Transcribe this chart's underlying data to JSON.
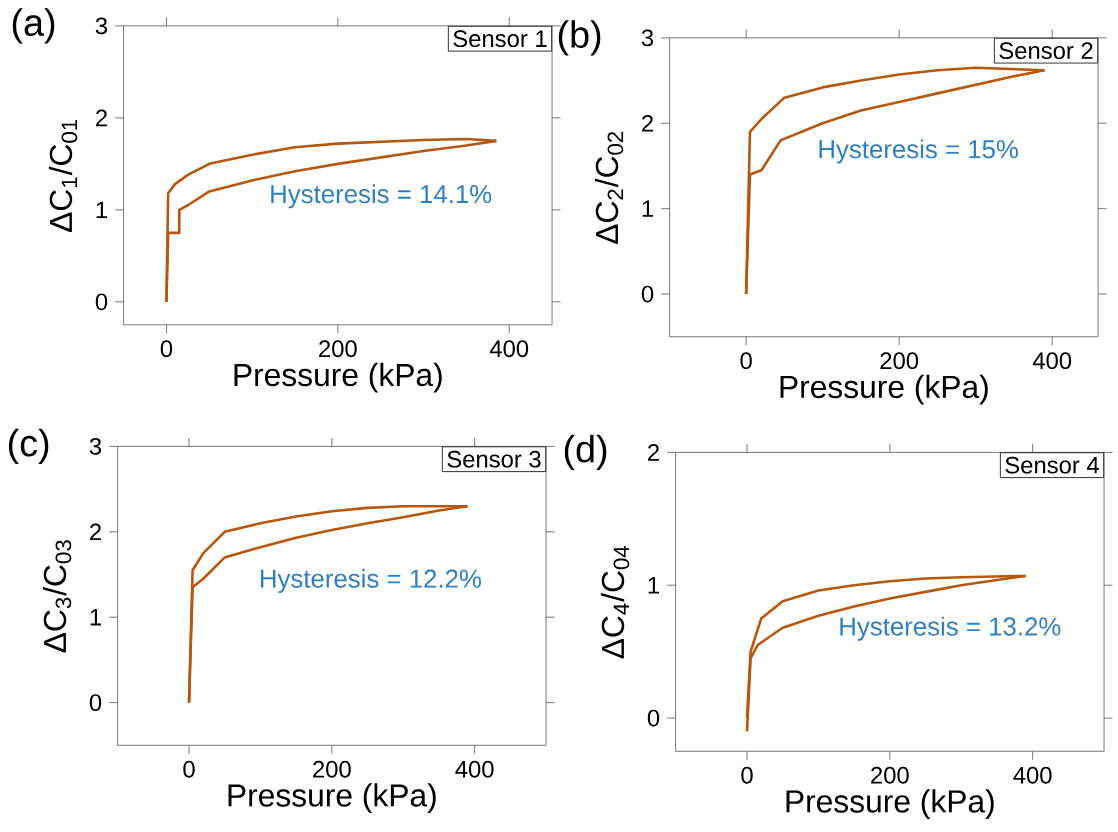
{
  "chart_data": [
    {
      "type": "line",
      "title": "(a)",
      "xlabel": "Pressure (kPa)",
      "ylabel": "ΔC$_{1}$/C$_{01}$",
      "annotations": [
        "Sensor 1",
        "Hysteresis = 14.1%"
      ],
      "xlim": [
        -50,
        450
      ],
      "ylim": [
        -0.25,
        3
      ],
      "xticks": [
        0,
        200,
        400
      ],
      "yticks": [
        0,
        1,
        2,
        3
      ],
      "series": [
        {
          "color": "#b5570f",
          "x": [
            0,
            2,
            15,
            15,
            25,
            50,
            100,
            150,
            200,
            250,
            300,
            350,
            385
          ],
          "values": [
            0,
            0.75,
            0.75,
            1.0,
            1.05,
            1.2,
            1.32,
            1.42,
            1.5,
            1.57,
            1.64,
            1.7,
            1.75
          ]
        },
        {
          "color": "#b5570f",
          "x": [
            385,
            350,
            300,
            250,
            200,
            150,
            100,
            50,
            25,
            10,
            2,
            0
          ],
          "values": [
            1.75,
            1.77,
            1.76,
            1.74,
            1.72,
            1.68,
            1.6,
            1.5,
            1.38,
            1.28,
            1.18,
            0
          ]
        }
      ]
    },
    {
      "type": "line",
      "title": "(b)",
      "xlabel": "Pressure (kPa)",
      "ylabel": "ΔC$_{2}$/C$_{02}$",
      "annotations": [
        "Sensor 2",
        "Hysteresis = 15%"
      ],
      "xlim": [
        -100,
        460
      ],
      "ylim": [
        -0.5,
        3
      ],
      "xticks": [
        0,
        200,
        400
      ],
      "yticks": [
        0,
        1,
        2,
        3
      ],
      "series": [
        {
          "color": "#b5570f",
          "x": [
            0,
            5,
            20,
            45,
            100,
            150,
            200,
            250,
            300,
            350,
            390
          ],
          "values": [
            0,
            1.4,
            1.45,
            1.8,
            2.0,
            2.15,
            2.25,
            2.35,
            2.45,
            2.55,
            2.62
          ]
        },
        {
          "color": "#b5570f",
          "x": [
            390,
            300,
            250,
            200,
            150,
            100,
            50,
            20,
            5,
            0
          ],
          "values": [
            2.62,
            2.65,
            2.62,
            2.57,
            2.5,
            2.42,
            2.3,
            2.05,
            1.9,
            0
          ]
        }
      ]
    },
    {
      "type": "line",
      "title": "(c)",
      "xlabel": "Pressure (kPa)",
      "ylabel": "ΔC$_{3}$/C$_{03}$",
      "annotations": [
        "Sensor 3",
        "Hysteresis = 12.2%"
      ],
      "xlim": [
        -100,
        500
      ],
      "ylim": [
        -0.5,
        3
      ],
      "xticks": [
        0,
        200,
        400
      ],
      "yticks": [
        0,
        1,
        2,
        3
      ],
      "series": [
        {
          "color": "#b5570f",
          "x": [
            0,
            5,
            20,
            50,
            100,
            150,
            200,
            250,
            300,
            350,
            390
          ],
          "values": [
            0,
            1.35,
            1.45,
            1.7,
            1.82,
            1.93,
            2.02,
            2.1,
            2.17,
            2.25,
            2.3
          ]
        },
        {
          "color": "#b5570f",
          "x": [
            390,
            300,
            250,
            200,
            150,
            100,
            50,
            20,
            5,
            0
          ],
          "values": [
            2.3,
            2.3,
            2.28,
            2.24,
            2.18,
            2.1,
            2.0,
            1.75,
            1.55,
            0
          ]
        }
      ]
    },
    {
      "type": "line",
      "title": "(d)",
      "xlabel": "Pressure (kPa)",
      "ylabel": "ΔC$_{4}$/C$_{04}$",
      "annotations": [
        "Sensor 4",
        "Hysteresis = 13.2%"
      ],
      "xlim": [
        -100,
        500
      ],
      "ylim": [
        -0.25,
        2
      ],
      "xticks": [
        0,
        200,
        400
      ],
      "yticks": [
        0,
        1,
        2
      ],
      "series": [
        {
          "color": "#b5570f",
          "x": [
            0,
            5,
            15,
            50,
            100,
            150,
            200,
            250,
            300,
            350,
            390
          ],
          "values": [
            -0.1,
            0.45,
            0.55,
            0.68,
            0.77,
            0.84,
            0.9,
            0.95,
            1.0,
            1.04,
            1.07
          ]
        },
        {
          "color": "#b5570f",
          "x": [
            390,
            300,
            250,
            200,
            150,
            100,
            50,
            20,
            5,
            0
          ],
          "values": [
            1.07,
            1.06,
            1.05,
            1.03,
            1.0,
            0.96,
            0.88,
            0.75,
            0.5,
            0
          ]
        }
      ]
    }
  ]
}
